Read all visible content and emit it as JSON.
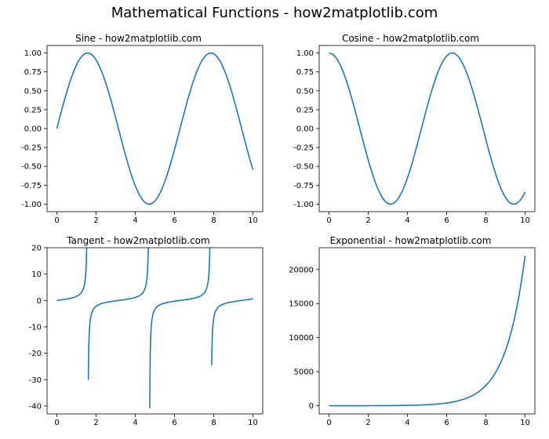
{
  "suptitle": "Mathematical Functions - how2matplotlib.com",
  "suptitle_fontsize": 18,
  "background_color": "#ffffff",
  "spine_color": "#000000",
  "tick_color": "#000000",
  "tick_fontsize": 10,
  "title_fontsize": 12,
  "line_color": "#1f77b4",
  "line_width": 1.6,
  "layout": {
    "rows": 2,
    "cols": 2
  },
  "panels": [
    {
      "key": "sine",
      "title": "Sine - how2matplotlib.com",
      "type": "line",
      "func": "sin",
      "x_domain": [
        0,
        10
      ],
      "n_points": 200,
      "xlim": [
        -0.5,
        10.5
      ],
      "ylim": [
        -1.1,
        1.1
      ],
      "xticks": [
        0,
        2,
        4,
        6,
        8,
        10
      ],
      "yticks": [
        -1.0,
        -0.75,
        -0.5,
        -0.25,
        0.0,
        0.25,
        0.5,
        0.75,
        1.0
      ],
      "ytick_format": "fixed2"
    },
    {
      "key": "cosine",
      "title": "Cosine - how2matplotlib.com",
      "type": "line",
      "func": "cos",
      "x_domain": [
        0,
        10
      ],
      "n_points": 200,
      "xlim": [
        -0.5,
        10.5
      ],
      "ylim": [
        -1.1,
        1.1
      ],
      "xticks": [
        0,
        2,
        4,
        6,
        8,
        10
      ],
      "yticks": [
        -1.0,
        -0.75,
        -0.5,
        -0.25,
        0.0,
        0.25,
        0.5,
        0.75,
        1.0
      ],
      "ytick_format": "fixed2"
    },
    {
      "key": "tangent",
      "title": "Tangent - how2matplotlib.com",
      "type": "line",
      "func": "tan_clipped",
      "x_domain": [
        0,
        10
      ],
      "n_points": 400,
      "clip_abs": 45,
      "xlim": [
        -0.5,
        10.5
      ],
      "ylim": [
        -43,
        20
      ],
      "xticks": [
        0,
        2,
        4,
        6,
        8,
        10
      ],
      "yticks": [
        -40,
        -30,
        -20,
        -10,
        0,
        10,
        20
      ],
      "ytick_format": "int"
    },
    {
      "key": "exponential",
      "title": "Exponential - how2matplotlib.com",
      "type": "line",
      "func": "exp",
      "x_domain": [
        0,
        10
      ],
      "n_points": 200,
      "xlim": [
        -0.5,
        10.5
      ],
      "ylim": [
        -1200,
        23200
      ],
      "xticks": [
        0,
        2,
        4,
        6,
        8,
        10
      ],
      "yticks": [
        0,
        5000,
        10000,
        15000,
        20000
      ],
      "ytick_format": "int"
    }
  ]
}
